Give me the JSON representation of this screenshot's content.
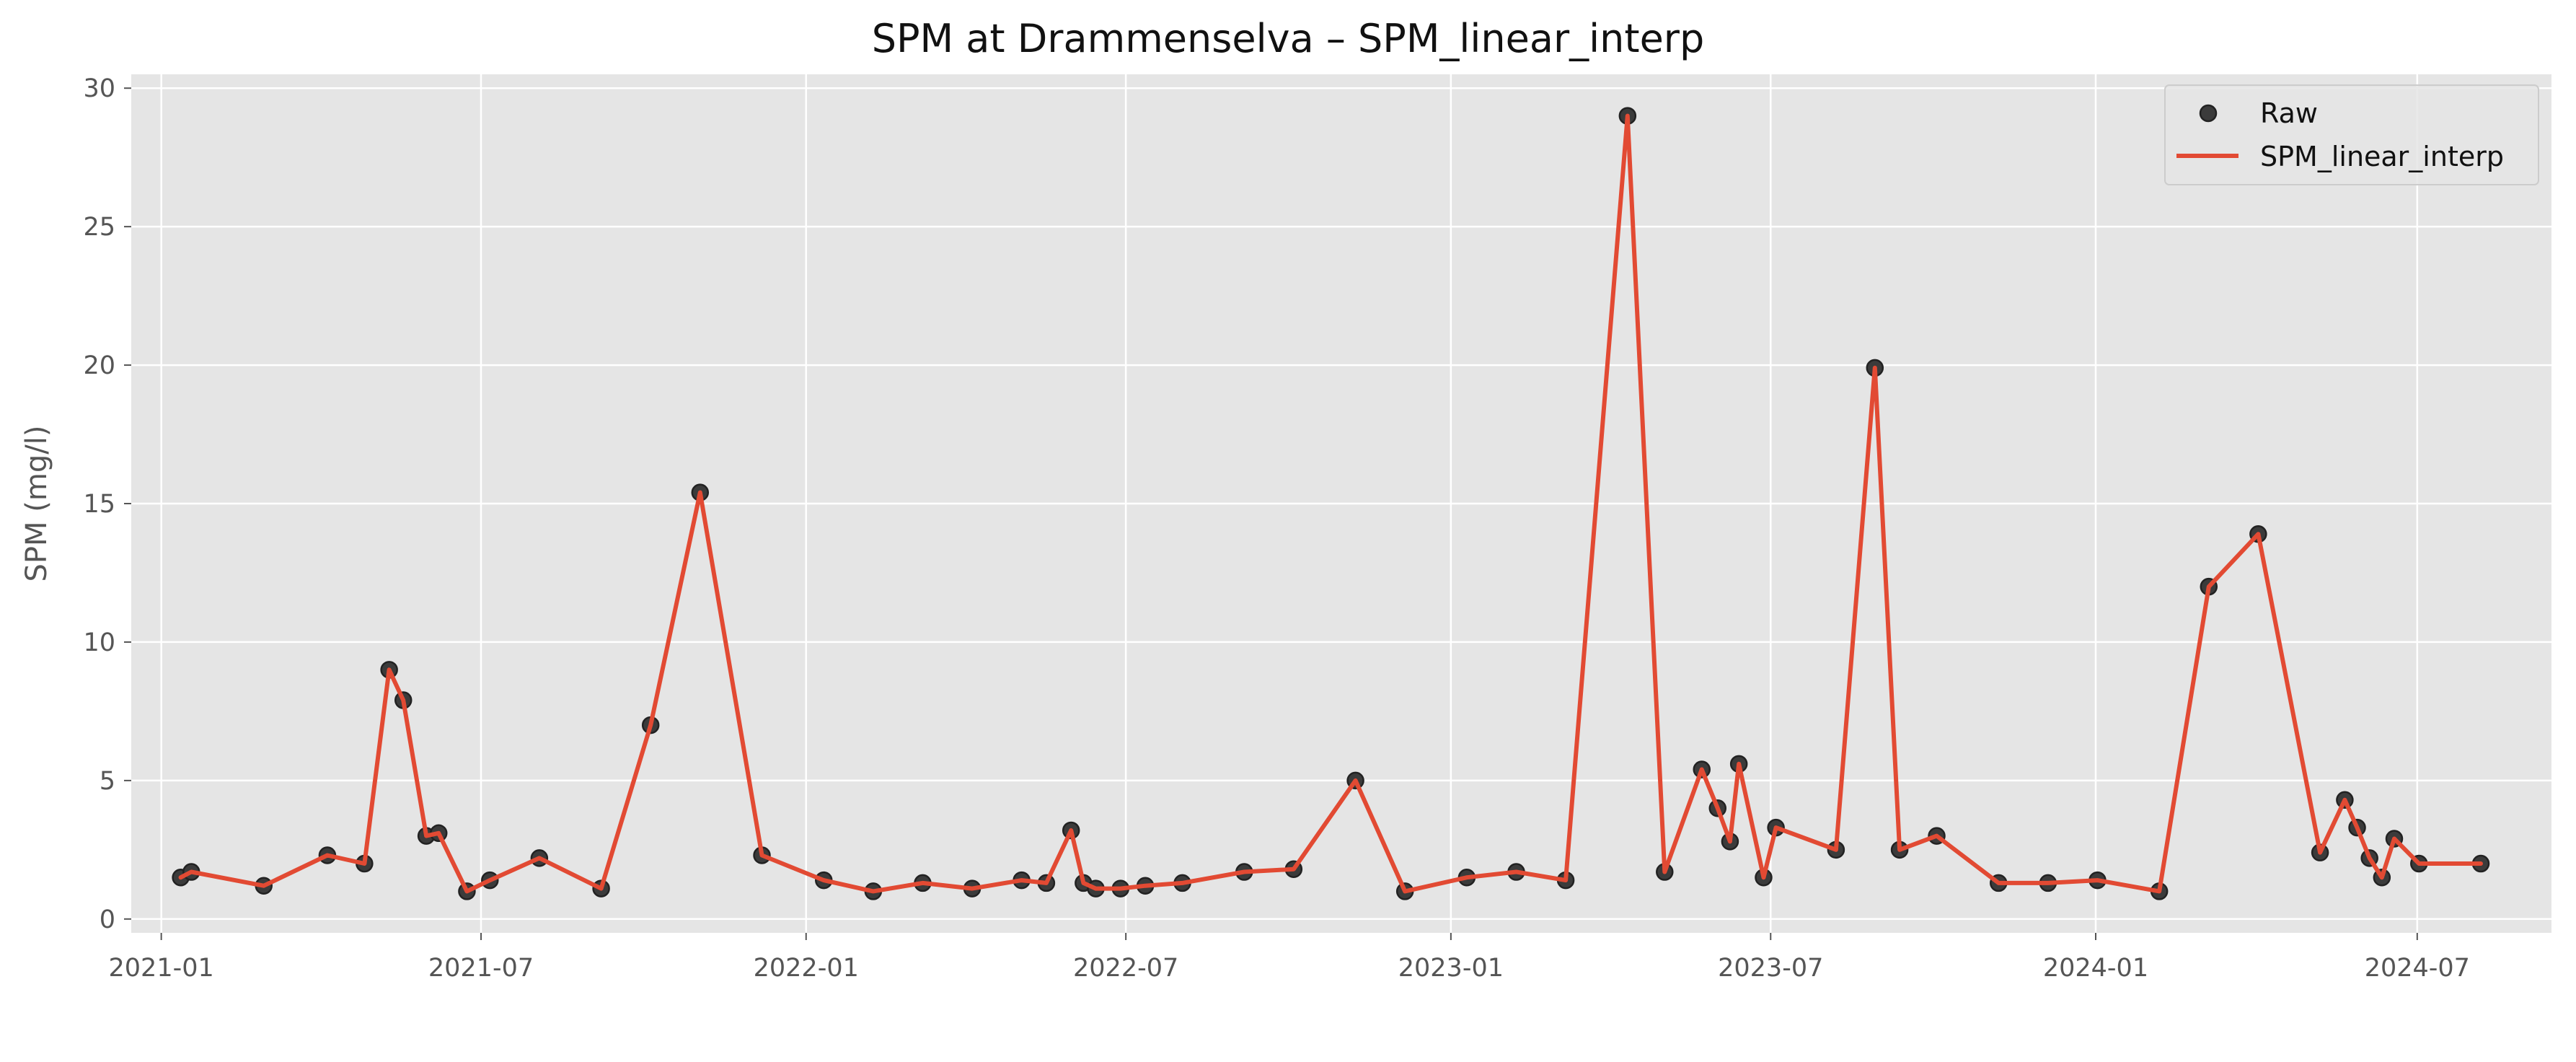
{
  "chart_data": {
    "type": "line",
    "title": "SPM at Drammenselva – SPM_linear_interp",
    "xlabel": "",
    "ylabel": "SPM (mg/l)",
    "x_type": "date",
    "xlim": [
      "2020-12-15",
      "2024-09-15"
    ],
    "ylim": [
      -0.5,
      30.5
    ],
    "x_ticks": [
      {
        "date": "2021-01-01",
        "label": "2021-01"
      },
      {
        "date": "2021-07-01",
        "label": "2021-07"
      },
      {
        "date": "2022-01-01",
        "label": "2022-01"
      },
      {
        "date": "2022-07-01",
        "label": "2022-07"
      },
      {
        "date": "2023-01-01",
        "label": "2023-01"
      },
      {
        "date": "2023-07-01",
        "label": "2023-07"
      },
      {
        "date": "2024-01-01",
        "label": "2024-01"
      },
      {
        "date": "2024-07-01",
        "label": "2024-07"
      }
    ],
    "y_ticks": [
      0,
      5,
      10,
      15,
      20,
      25,
      30
    ],
    "grid": true,
    "legend_position": "top-right",
    "colors": {
      "plot_background": "#e5e5e5",
      "grid": "#ffffff",
      "raw_marker": "#3b3b3b",
      "line": "#e24a33"
    },
    "x": [
      "2021-01-12",
      "2021-01-18",
      "2021-02-28",
      "2021-04-05",
      "2021-04-26",
      "2021-05-10",
      "2021-05-18",
      "2021-05-31",
      "2021-06-07",
      "2021-06-23",
      "2021-07-06",
      "2021-08-03",
      "2021-09-07",
      "2021-10-05",
      "2021-11-02",
      "2021-12-07",
      "2022-01-11",
      "2022-02-08",
      "2022-03-08",
      "2022-04-05",
      "2022-05-03",
      "2022-05-17",
      "2022-05-31",
      "2022-06-07",
      "2022-06-14",
      "2022-06-28",
      "2022-07-12",
      "2022-08-02",
      "2022-09-06",
      "2022-10-04",
      "2022-11-08",
      "2022-12-06",
      "2023-01-10",
      "2023-02-07",
      "2023-03-07",
      "2023-04-11",
      "2023-05-02",
      "2023-05-23",
      "2023-06-01",
      "2023-06-08",
      "2023-06-13",
      "2023-06-27",
      "2023-07-04",
      "2023-08-07",
      "2023-08-29",
      "2023-09-12",
      "2023-10-03",
      "2023-11-07",
      "2023-12-05",
      "2024-01-02",
      "2024-02-06",
      "2024-03-05",
      "2024-04-02",
      "2024-05-07",
      "2024-05-21",
      "2024-05-28",
      "2024-06-04",
      "2024-06-11",
      "2024-06-18",
      "2024-07-02",
      "2024-08-06"
    ],
    "series": [
      {
        "name": "Raw",
        "kind": "scatter",
        "values": [
          1.5,
          1.7,
          1.2,
          2.3,
          2.0,
          9.0,
          7.9,
          3.0,
          3.1,
          1.0,
          1.4,
          2.2,
          1.1,
          7.0,
          15.4,
          2.3,
          1.4,
          1.0,
          1.3,
          1.1,
          1.4,
          1.3,
          3.2,
          1.3,
          1.1,
          1.1,
          1.2,
          1.3,
          1.7,
          1.8,
          5.0,
          1.0,
          1.5,
          1.7,
          1.4,
          29.0,
          1.7,
          5.4,
          4.0,
          2.8,
          5.6,
          1.5,
          3.3,
          2.5,
          19.9,
          2.5,
          3.0,
          1.3,
          1.3,
          1.4,
          1.0,
          12.0,
          13.9,
          2.4,
          4.3,
          3.3,
          2.2,
          1.5,
          2.9,
          2.0,
          2.0
        ]
      },
      {
        "name": "SPM_linear_interp",
        "kind": "line",
        "values": [
          1.5,
          1.7,
          1.2,
          2.3,
          2.0,
          9.0,
          7.9,
          3.0,
          3.1,
          1.0,
          1.4,
          2.2,
          1.1,
          7.0,
          15.4,
          2.3,
          1.4,
          1.0,
          1.3,
          1.1,
          1.4,
          1.3,
          3.2,
          1.3,
          1.1,
          1.1,
          1.2,
          1.3,
          1.7,
          1.8,
          5.0,
          1.0,
          1.5,
          1.7,
          1.4,
          29.0,
          1.7,
          5.4,
          4.0,
          2.8,
          5.6,
          1.5,
          3.3,
          2.5,
          19.9,
          2.5,
          3.0,
          1.3,
          1.3,
          1.4,
          1.0,
          12.0,
          13.9,
          2.4,
          4.3,
          3.3,
          2.2,
          1.5,
          2.9,
          2.0,
          2.0
        ]
      }
    ]
  }
}
